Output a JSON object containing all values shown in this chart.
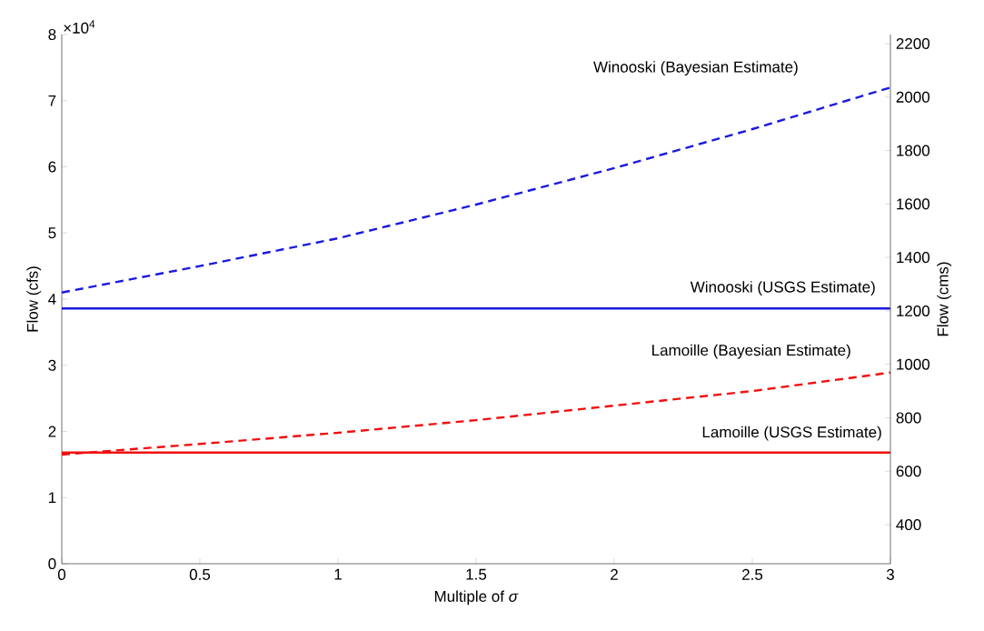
{
  "chart_data": {
    "type": "line",
    "xlabel": "Multiple of *σ*",
    "ylabel": "Flow (cfs)",
    "y2label": "Flow (cms)",
    "x": [
      0,
      0.5,
      1,
      1.5,
      2,
      2.5,
      3
    ],
    "series": [
      {
        "name": "Winooski (Bayesian Estimate)",
        "color": "#1a1ae0",
        "line_style": "dashed",
        "values": [
          4.1,
          4.5,
          4.92,
          5.43,
          5.98,
          6.57,
          7.2
        ]
      },
      {
        "name": "Winooski (USGS Estimate)",
        "color": "#1a1ae0",
        "line_style": "solid",
        "values": [
          3.86,
          3.86,
          3.86,
          3.86,
          3.86,
          3.86,
          3.86
        ]
      },
      {
        "name": "Lamoille (Bayesian Estimate)",
        "color": "#f01010",
        "line_style": "dashed",
        "values": [
          1.65,
          1.81,
          1.98,
          2.17,
          2.39,
          2.61,
          2.89
        ]
      },
      {
        "name": "Lamoille (USGS Estimate)",
        "color": "#f01010",
        "line_style": "solid",
        "values": [
          1.68,
          1.68,
          1.68,
          1.68,
          1.68,
          1.68,
          1.68
        ]
      }
    ],
    "xlim": [
      0,
      3
    ],
    "xticks": [
      0,
      0.5,
      1,
      1.5,
      2,
      2.5,
      3
    ],
    "ylim": [
      0,
      8
    ],
    "yticks": [
      0,
      1,
      2,
      3,
      4,
      5,
      6,
      7,
      8
    ],
    "y2lim": [
      254,
      2234
    ],
    "y2ticks": [
      400,
      600,
      800,
      1000,
      1200,
      1400,
      1600,
      1800,
      2000,
      2200
    ],
    "annotations": [
      "×10$^{4}$"
    ]
  }
}
